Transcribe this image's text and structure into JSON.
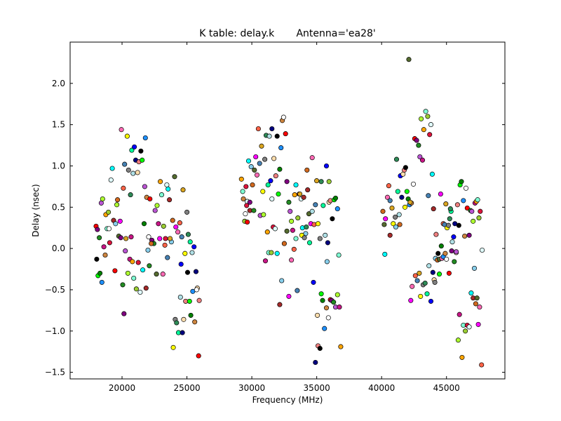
{
  "chart_data": {
    "type": "scatter",
    "title": "K table: delay.k       Antenna='ea28'",
    "xlabel": "Frequency (MHz)",
    "ylabel": "Delay (nsec)",
    "xlim": [
      16000,
      49500
    ],
    "ylim": [
      -1.58,
      2.5
    ],
    "xticks": [
      20000,
      25000,
      30000,
      35000,
      40000,
      45000
    ],
    "yticks": [
      -1.5,
      -1.0,
      -0.5,
      0.0,
      0.5,
      1.0,
      1.5,
      2.0
    ],
    "xtick_labels": [
      "20000",
      "25000",
      "30000",
      "35000",
      "40000",
      "45000"
    ],
    "ytick_labels": [
      "−1.5",
      "−1.0",
      "−0.5",
      "0.0",
      "0.5",
      "1.0",
      "1.5",
      "2.0"
    ],
    "grid": false,
    "legend": "none",
    "marker": "circle",
    "palette": [
      "#ff0000",
      "#00ff00",
      "#0000ff",
      "#ffff00",
      "#ff00ff",
      "#00ffff",
      "#ffa500",
      "#800080",
      "#008000",
      "#000080",
      "#808080",
      "#ff69b4",
      "#a52a2a",
      "#7fffd4",
      "#228b22",
      "#1e90ff",
      "#ffdead",
      "#2e8b57",
      "#ff6347",
      "#87ceeb",
      "#9acd32",
      "#ba55d3",
      "#cd853f",
      "#f08080",
      "#00fa9a",
      "#4682b4",
      "#d2691e",
      "#dc143c",
      "#adff2f",
      "#ffffff",
      "#000000",
      "#b0e0e6",
      "#daa520",
      "#556b2f",
      "#e0ffff",
      "#c71585"
    ],
    "points": [
      [
        18000,
        0.27
      ],
      [
        18100,
        0.23
      ],
      [
        18250,
        0.13
      ],
      [
        18400,
        0.55
      ],
      [
        18500,
        0.6
      ],
      [
        18600,
        0.02
      ],
      [
        18750,
        0.41
      ],
      [
        18850,
        0.24
      ],
      [
        18950,
        0.44
      ],
      [
        19050,
        0.07
      ],
      [
        19150,
        0.83
      ],
      [
        19250,
        0.97
      ],
      [
        19350,
        0.34
      ],
      [
        19500,
        0.3
      ],
      [
        19650,
        0.59
      ],
      [
        19750,
        0.15
      ],
      [
        19850,
        0.33
      ],
      [
        19950,
        1.44
      ],
      [
        20100,
        0.73
      ],
      [
        20200,
        1.02
      ],
      [
        20300,
        0.12
      ],
      [
        20400,
        1.36
      ],
      [
        20500,
        0.95
      ],
      [
        20650,
        0.65
      ],
      [
        20750,
        1.19
      ],
      [
        20850,
        0.91
      ],
      [
        20950,
        1.23
      ],
      [
        21050,
        1.07
      ],
      [
        21200,
        0.92
      ],
      [
        21300,
        1.05
      ],
      [
        21450,
        1.18
      ],
      [
        21550,
        1.07
      ],
      [
        21700,
        0.3
      ],
      [
        21800,
        1.34
      ],
      [
        21900,
        0.62
      ],
      [
        22050,
        0.14
      ],
      [
        22150,
        0.6
      ],
      [
        22300,
        0.1
      ],
      [
        22450,
        0.06
      ],
      [
        22550,
        0.46
      ],
      [
        22700,
        0.52
      ],
      [
        22800,
        0.3
      ],
      [
        22950,
        0.81
      ],
      [
        23050,
        0.65
      ],
      [
        23200,
        0.27
      ],
      [
        23350,
        0.12
      ],
      [
        23450,
        0.77
      ],
      [
        23550,
        0.72
      ],
      [
        23650,
        0.59
      ],
      [
        23800,
        0.08
      ],
      [
        23900,
        0.34
      ],
      [
        24050,
        0.87
      ],
      [
        24150,
        0.26
      ],
      [
        24300,
        0.2
      ],
      [
        24450,
        0.31
      ],
      [
        24600,
        0.14
      ],
      [
        24700,
        0.71
      ],
      [
        24850,
        -0.06
      ],
      [
        25000,
        0.44
      ],
      [
        25100,
        0.17
      ],
      [
        25250,
        0.08
      ],
      [
        25400,
        -0.05
      ],
      [
        25550,
        0.02
      ],
      [
        25700,
        -0.28
      ],
      [
        25800,
        -0.48
      ],
      [
        25950,
        -0.63
      ],
      [
        18050,
        -0.13
      ],
      [
        18150,
        -0.33
      ],
      [
        18300,
        -0.3
      ],
      [
        18450,
        -0.41
      ],
      [
        18700,
        -0.08
      ],
      [
        19000,
        0.24
      ],
      [
        19450,
        -0.27
      ],
      [
        19900,
        0.13
      ],
      [
        20050,
        -0.44
      ],
      [
        20250,
        -0.03
      ],
      [
        20450,
        -0.3
      ],
      [
        20600,
        -0.13
      ],
      [
        20800,
        -0.16
      ],
      [
        20900,
        -0.36
      ],
      [
        21100,
        -0.49
      ],
      [
        21250,
        -0.17
      ],
      [
        21400,
        -0.53
      ],
      [
        21600,
        -0.26
      ],
      [
        21850,
        -0.48
      ],
      [
        22000,
        -0.02
      ],
      [
        22250,
        0.06
      ],
      [
        22650,
        -0.31
      ],
      [
        22900,
        0.12
      ],
      [
        23150,
        -0.31
      ],
      [
        23300,
        0.04
      ],
      [
        23500,
        -0.11
      ],
      [
        23700,
        0.12
      ],
      [
        23950,
        -1.2
      ],
      [
        24100,
        -0.86
      ],
      [
        24200,
        -0.9
      ],
      [
        24350,
        -1.02
      ],
      [
        24500,
        -0.59
      ],
      [
        24550,
        -0.19
      ],
      [
        24650,
        -1.02
      ],
      [
        24750,
        -0.86
      ],
      [
        24900,
        -0.64
      ],
      [
        25050,
        -0.29
      ],
      [
        25200,
        -0.64
      ],
      [
        25300,
        -0.81
      ],
      [
        25450,
        -0.52
      ],
      [
        25600,
        -0.89
      ],
      [
        25750,
        -0.5
      ],
      [
        25900,
        -1.3
      ],
      [
        20150,
        -0.79
      ],
      [
        22100,
        -0.21
      ],
      [
        21750,
        0.75
      ],
      [
        19600,
        0.53
      ],
      [
        20700,
        0.14
      ],
      [
        29200,
        0.84
      ],
      [
        29300,
        0.69
      ],
      [
        29450,
        0.33
      ],
      [
        29550,
        0.75
      ],
      [
        29650,
        0.57
      ],
      [
        29750,
        1.06
      ],
      [
        29850,
        0.46
      ],
      [
        29950,
        0.99
      ],
      [
        30050,
        0.77
      ],
      [
        30200,
        0.95
      ],
      [
        30300,
        1.11
      ],
      [
        30400,
        0.89
      ],
      [
        30500,
        1.45
      ],
      [
        30600,
        1.03
      ],
      [
        30750,
        1.24
      ],
      [
        30850,
        0.69
      ],
      [
        31000,
        1.08
      ],
      [
        31100,
        1.37
      ],
      [
        31250,
        0.77
      ],
      [
        31350,
        1.36
      ],
      [
        31450,
        0.82
      ],
      [
        31550,
        1.45
      ],
      [
        31700,
        1.09
      ],
      [
        31850,
        0.88
      ],
      [
        31950,
        1.36
      ],
      [
        32050,
        0.66
      ],
      [
        32150,
        0.96
      ],
      [
        32250,
        1.22
      ],
      [
        32350,
        1.55
      ],
      [
        32450,
        1.59
      ],
      [
        32600,
        1.39
      ],
      [
        32700,
        0.81
      ],
      [
        32850,
        0.56
      ],
      [
        32950,
        0.45
      ],
      [
        33050,
        0.33
      ],
      [
        33150,
        0.22
      ],
      [
        33300,
        0.65
      ],
      [
        33400,
        0.12
      ],
      [
        33550,
        0.37
      ],
      [
        33650,
        0.66
      ],
      [
        33800,
        0.6
      ],
      [
        33900,
        0.25
      ],
      [
        34000,
        0.62
      ],
      [
        34150,
        0.18
      ],
      [
        34250,
        0.95
      ],
      [
        34400,
        0.42
      ],
      [
        34550,
        0.3
      ],
      [
        34650,
        1.1
      ],
      [
        34800,
        0.29
      ],
      [
        34900,
        0.53
      ],
      [
        35000,
        0.82
      ],
      [
        35100,
        0.3
      ],
      [
        35250,
        0.12
      ],
      [
        35350,
        0.81
      ],
      [
        35500,
        0.52
      ],
      [
        35650,
        0.16
      ],
      [
        35750,
        1.0
      ],
      [
        35850,
        0.07
      ],
      [
        35950,
        0.56
      ],
      [
        36050,
        0.58
      ],
      [
        36200,
        0.36
      ],
      [
        36350,
        0.59
      ],
      [
        36450,
        0.61
      ],
      [
        36600,
        0.48
      ],
      [
        29350,
        0.6
      ],
      [
        29500,
        0.42
      ],
      [
        29650,
        0.32
      ],
      [
        29850,
        0.56
      ],
      [
        30150,
        0.46
      ],
      [
        30650,
        0.4
      ],
      [
        30900,
        0.41
      ],
      [
        31050,
        -0.15
      ],
      [
        31200,
        0.2
      ],
      [
        31300,
        -0.05
      ],
      [
        31500,
        -0.05
      ],
      [
        31650,
        0.26
      ],
      [
        31800,
        0.24
      ],
      [
        31950,
        -0.06
      ],
      [
        32150,
        -0.68
      ],
      [
        32300,
        -0.39
      ],
      [
        32500,
        0.06
      ],
      [
        32700,
        0.21
      ],
      [
        32850,
        -0.58
      ],
      [
        33050,
        -0.14
      ],
      [
        33250,
        -0.01
      ],
      [
        33500,
        -0.51
      ],
      [
        33700,
        0.66
      ],
      [
        33850,
        0.16
      ],
      [
        34050,
        0.13
      ],
      [
        34200,
        0.26
      ],
      [
        34450,
        0.07
      ],
      [
        34650,
        0.45
      ],
      [
        34750,
        -0.41
      ],
      [
        34900,
        -1.38
      ],
      [
        35050,
        -0.81
      ],
      [
        35100,
        -1.18
      ],
      [
        35250,
        -1.21
      ],
      [
        35350,
        -0.55
      ],
      [
        35450,
        -0.63
      ],
      [
        35600,
        -0.97
      ],
      [
        35750,
        -0.72
      ],
      [
        35900,
        -0.84
      ],
      [
        36050,
        -0.62
      ],
      [
        36150,
        -0.63
      ],
      [
        36300,
        -0.65
      ],
      [
        36450,
        -0.71
      ],
      [
        36600,
        -0.56
      ],
      [
        36750,
        -0.71
      ],
      [
        36850,
        -1.19
      ],
      [
        36700,
        -0.08
      ],
      [
        35950,
        0.81
      ],
      [
        29600,
        0.52
      ],
      [
        31550,
        0.6
      ],
      [
        33400,
        0.77
      ],
      [
        34300,
        0.71
      ],
      [
        35800,
        -0.16
      ],
      [
        40100,
        0.45
      ],
      [
        40200,
        0.29
      ],
      [
        40300,
        0.36
      ],
      [
        40450,
        0.62
      ],
      [
        40550,
        0.76
      ],
      [
        40650,
        0.58
      ],
      [
        40800,
        0.49
      ],
      [
        40900,
        0.3
      ],
      [
        41050,
        0.38
      ],
      [
        41150,
        1.08
      ],
      [
        41250,
        0.69
      ],
      [
        41350,
        0.41
      ],
      [
        41450,
        0.88
      ],
      [
        41550,
        0.62
      ],
      [
        41650,
        0.9
      ],
      [
        41750,
        0.95
      ],
      [
        41850,
        0.98
      ],
      [
        41950,
        0.69
      ],
      [
        42050,
        0.6
      ],
      [
        42150,
        0.53
      ],
      [
        42300,
        0.55
      ],
      [
        42450,
        0.78
      ],
      [
        42550,
        1.33
      ],
      [
        42700,
        1.31
      ],
      [
        42850,
        1.25
      ],
      [
        42950,
        1.11
      ],
      [
        43050,
        1.57
      ],
      [
        43150,
        1.07
      ],
      [
        43250,
        1.44
      ],
      [
        43400,
        1.66
      ],
      [
        43550,
        1.6
      ],
      [
        43700,
        1.38
      ],
      [
        43800,
        1.5
      ],
      [
        43900,
        0.9
      ],
      [
        44000,
        0.48
      ],
      [
        44150,
        -0.12
      ],
      [
        44300,
        -0.14
      ],
      [
        44450,
        -0.13
      ],
      [
        44550,
        0.66
      ],
      [
        44650,
        -0.12
      ],
      [
        44750,
        0.3
      ],
      [
        44850,
        0.29
      ],
      [
        44950,
        0.54
      ],
      [
        45050,
        0.25
      ],
      [
        45150,
        0.28
      ],
      [
        45250,
        0.36
      ],
      [
        45350,
        0.45
      ],
      [
        45450,
        0.08
      ],
      [
        45550,
        0.14
      ],
      [
        45650,
        0.3
      ],
      [
        45750,
        -0.05
      ],
      [
        45850,
        0.53
      ],
      [
        45950,
        0.28
      ],
      [
        46050,
        0.77
      ],
      [
        46150,
        0.81
      ],
      [
        46300,
        0.58
      ],
      [
        46400,
        0.15
      ],
      [
        46500,
        0.73
      ],
      [
        46600,
        0.49
      ],
      [
        46750,
        0.16
      ],
      [
        46850,
        0.46
      ],
      [
        46950,
        0.45
      ],
      [
        47050,
        0.33
      ],
      [
        47200,
        0.55
      ],
      [
        47300,
        0.57
      ],
      [
        47400,
        0.59
      ],
      [
        47500,
        0.37
      ],
      [
        47600,
        0.45
      ],
      [
        47750,
        -0.02
      ],
      [
        40250,
        -0.07
      ],
      [
        40650,
        0.16
      ],
      [
        41100,
        0.26
      ],
      [
        41400,
        0.29
      ],
      [
        42100,
        2.29
      ],
      [
        42250,
        -0.63
      ],
      [
        42350,
        -0.46
      ],
      [
        42600,
        -0.33
      ],
      [
        42750,
        -0.39
      ],
      [
        42900,
        -0.3
      ],
      [
        43000,
        -0.58
      ],
      [
        43200,
        -0.44
      ],
      [
        43350,
        -0.42
      ],
      [
        43500,
        -0.55
      ],
      [
        43650,
        -0.21
      ],
      [
        43800,
        -0.64
      ],
      [
        43950,
        -0.29
      ],
      [
        44050,
        -0.38
      ],
      [
        44200,
        0.17
      ],
      [
        44350,
        -0.06
      ],
      [
        44450,
        -0.31
      ],
      [
        44600,
        0.03
      ],
      [
        44750,
        -0.1
      ],
      [
        44900,
        -0.06
      ],
      [
        45000,
        -0.13
      ],
      [
        45200,
        -0.3
      ],
      [
        45400,
        -0.03
      ],
      [
        45600,
        -0.16
      ],
      [
        45750,
        -0.04
      ],
      [
        45900,
        -1.11
      ],
      [
        46000,
        -0.8
      ],
      [
        46200,
        -1.32
      ],
      [
        46300,
        -0.93
      ],
      [
        46450,
        -1.0
      ],
      [
        46600,
        -0.93
      ],
      [
        46750,
        -0.95
      ],
      [
        46900,
        -0.54
      ],
      [
        47050,
        -0.6
      ],
      [
        47150,
        -0.24
      ],
      [
        47250,
        -0.67
      ],
      [
        47350,
        -0.6
      ],
      [
        47450,
        -0.92
      ],
      [
        47550,
        -0.71
      ],
      [
        47700,
        -1.41
      ],
      [
        43600,
        0.64
      ],
      [
        42200,
        0.56
      ],
      [
        41800,
        0.5
      ],
      [
        44100,
        -0.41
      ],
      [
        45300,
        0.48
      ]
    ]
  }
}
